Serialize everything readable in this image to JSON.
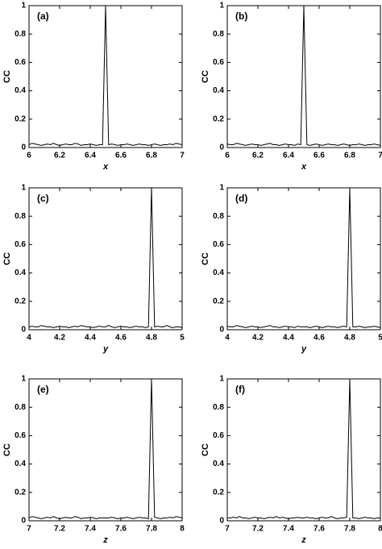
{
  "chart_data": [
    {
      "type": "line",
      "annotation": "(a)",
      "xlabel": "x",
      "ylabel": "CC",
      "color": "#000000",
      "x": [
        6,
        6.02,
        6.04,
        6.06,
        6.08,
        6.1,
        6.12,
        6.14,
        6.16,
        6.18,
        6.2,
        6.22,
        6.24,
        6.26,
        6.28,
        6.3,
        6.32,
        6.34,
        6.36,
        6.38,
        6.4,
        6.42,
        6.44,
        6.46,
        6.48,
        6.5,
        6.52,
        6.54,
        6.56,
        6.58,
        6.6,
        6.62,
        6.64,
        6.66,
        6.68,
        6.7,
        6.72,
        6.74,
        6.76,
        6.78,
        6.8,
        6.82,
        6.84,
        6.86,
        6.88,
        6.9,
        6.92,
        6.94,
        6.96,
        6.98,
        7
      ],
      "values": [
        0.02,
        0.03,
        0.025,
        0.02,
        0.015,
        0.02,
        0.025,
        0.02,
        0.03,
        0.02,
        0.015,
        0.02,
        0.025,
        0.02,
        0.02,
        0.03,
        0.025,
        0.015,
        0.02,
        0.02,
        0.025,
        0.02,
        0.015,
        0.02,
        0.02,
        1,
        0.02,
        0.025,
        0.02,
        0.015,
        0.02,
        0.02,
        0.025,
        0.02,
        0.015,
        0.02,
        0.025,
        0.02,
        0.02,
        0.015,
        0.02,
        0.025,
        0.02,
        0.015,
        0.02,
        0.02,
        0.025,
        0.02,
        0.03,
        0.025,
        0.02
      ],
      "xlim": [
        6,
        7
      ],
      "ylim": [
        0,
        1
      ],
      "xticks": [
        6,
        6.2,
        6.4,
        6.6,
        6.8,
        7
      ],
      "yticks": [
        0,
        0.2,
        0.4,
        0.6,
        0.8,
        1
      ]
    },
    {
      "type": "line",
      "annotation": "(b)",
      "xlabel": "x",
      "ylabel": "CC",
      "color": "#000000",
      "x": [
        6,
        6.02,
        6.04,
        6.06,
        6.08,
        6.1,
        6.12,
        6.14,
        6.16,
        6.18,
        6.2,
        6.22,
        6.24,
        6.26,
        6.28,
        6.3,
        6.32,
        6.34,
        6.36,
        6.38,
        6.4,
        6.42,
        6.44,
        6.46,
        6.48,
        6.5,
        6.52,
        6.54,
        6.56,
        6.58,
        6.6,
        6.62,
        6.64,
        6.66,
        6.68,
        6.7,
        6.72,
        6.74,
        6.76,
        6.78,
        6.8,
        6.82,
        6.84,
        6.86,
        6.88,
        6.9,
        6.92,
        6.94,
        6.96,
        6.98,
        7
      ],
      "values": [
        0.025,
        0.02,
        0.02,
        0.03,
        0.025,
        0.02,
        0.015,
        0.02,
        0.025,
        0.02,
        0.02,
        0.015,
        0.02,
        0.025,
        0.03,
        0.02,
        0.02,
        0.015,
        0.02,
        0.025,
        0.02,
        0.02,
        0.015,
        0.025,
        0.02,
        1,
        0.02,
        0.015,
        0.02,
        0.025,
        0.02,
        0.015,
        0.02,
        0.025,
        0.02,
        0.02,
        0.015,
        0.02,
        0.025,
        0.02,
        0.015,
        0.02,
        0.02,
        0.025,
        0.02,
        0.015,
        0.02,
        0.02,
        0.025,
        0.02,
        0.015
      ],
      "xlim": [
        6,
        7
      ],
      "ylim": [
        0,
        1
      ],
      "xticks": [
        6,
        6.2,
        6.4,
        6.6,
        6.8,
        7
      ],
      "yticks": [
        0,
        0.2,
        0.4,
        0.6,
        0.8,
        1
      ]
    },
    {
      "type": "line",
      "annotation": "(c)",
      "xlabel": "y",
      "ylabel": "CC",
      "color": "#000000",
      "x": [
        4,
        4.02,
        4.04,
        4.06,
        4.08,
        4.1,
        4.12,
        4.14,
        4.16,
        4.18,
        4.2,
        4.22,
        4.24,
        4.26,
        4.28,
        4.3,
        4.32,
        4.34,
        4.36,
        4.38,
        4.4,
        4.42,
        4.44,
        4.46,
        4.48,
        4.5,
        4.52,
        4.54,
        4.56,
        4.58,
        4.6,
        4.62,
        4.64,
        4.66,
        4.68,
        4.7,
        4.72,
        4.74,
        4.76,
        4.78,
        4.8,
        4.82,
        4.84,
        4.86,
        4.88,
        4.9,
        4.92,
        4.94,
        4.96,
        4.98,
        5
      ],
      "values": [
        0.02,
        0.025,
        0.02,
        0.02,
        0.03,
        0.025,
        0.02,
        0.02,
        0.015,
        0.02,
        0.025,
        0.02,
        0.02,
        0.015,
        0.02,
        0.025,
        0.02,
        0.03,
        0.025,
        0.02,
        0.02,
        0.015,
        0.02,
        0.025,
        0.02,
        0.02,
        0.03,
        0.02,
        0.015,
        0.02,
        0.025,
        0.02,
        0.02,
        0.015,
        0.02,
        0.025,
        0.02,
        0.02,
        0.015,
        0.02,
        1,
        0.02,
        0.025,
        0.02,
        0.02,
        0.03,
        0.02,
        0.015,
        0.02,
        0.02,
        0.015
      ],
      "xlim": [
        4,
        5
      ],
      "ylim": [
        0,
        1
      ],
      "xticks": [
        4,
        4.2,
        4.4,
        4.6,
        4.8,
        5
      ],
      "yticks": [
        0,
        0.2,
        0.4,
        0.6,
        0.8,
        1
      ]
    },
    {
      "type": "line",
      "annotation": "(d)",
      "xlabel": "y",
      "ylabel": "CC",
      "color": "#000000",
      "x": [
        4,
        4.02,
        4.04,
        4.06,
        4.08,
        4.1,
        4.12,
        4.14,
        4.16,
        4.18,
        4.2,
        4.22,
        4.24,
        4.26,
        4.28,
        4.3,
        4.32,
        4.34,
        4.36,
        4.38,
        4.4,
        4.42,
        4.44,
        4.46,
        4.48,
        4.5,
        4.52,
        4.54,
        4.56,
        4.58,
        4.6,
        4.62,
        4.64,
        4.66,
        4.68,
        4.7,
        4.72,
        4.74,
        4.76,
        4.78,
        4.8,
        4.82,
        4.84,
        4.86,
        4.88,
        4.9,
        4.92,
        4.94,
        4.96,
        4.98,
        5
      ],
      "values": [
        0.025,
        0.02,
        0.02,
        0.03,
        0.025,
        0.02,
        0.015,
        0.02,
        0.025,
        0.02,
        0.02,
        0.015,
        0.02,
        0.025,
        0.03,
        0.02,
        0.02,
        0.015,
        0.02,
        0.025,
        0.02,
        0.02,
        0.015,
        0.025,
        0.02,
        0.02,
        0.02,
        0.015,
        0.02,
        0.025,
        0.02,
        0.015,
        0.02,
        0.025,
        0.02,
        0.02,
        0.015,
        0.02,
        0.025,
        0.02,
        1,
        0.02,
        0.02,
        0.025,
        0.02,
        0.015,
        0.02,
        0.02,
        0.025,
        0.02,
        0.015
      ],
      "xlim": [
        4,
        5
      ],
      "ylim": [
        0,
        1
      ],
      "xticks": [
        4,
        4.2,
        4.4,
        4.6,
        4.8,
        5
      ],
      "yticks": [
        0,
        0.2,
        0.4,
        0.6,
        0.8,
        1
      ]
    },
    {
      "type": "line",
      "annotation": "(e)",
      "xlabel": "z",
      "ylabel": "CC",
      "color": "#000000",
      "x": [
        7,
        7.02,
        7.04,
        7.06,
        7.08,
        7.1,
        7.12,
        7.14,
        7.16,
        7.18,
        7.2,
        7.22,
        7.24,
        7.26,
        7.28,
        7.3,
        7.32,
        7.34,
        7.36,
        7.38,
        7.4,
        7.42,
        7.44,
        7.46,
        7.48,
        7.5,
        7.52,
        7.54,
        7.56,
        7.58,
        7.6,
        7.62,
        7.64,
        7.66,
        7.68,
        7.7,
        7.72,
        7.74,
        7.76,
        7.78,
        7.8,
        7.82,
        7.84,
        7.86,
        7.88,
        7.9,
        7.92,
        7.94,
        7.96,
        7.98,
        8
      ],
      "values": [
        0.02,
        0.03,
        0.025,
        0.02,
        0.015,
        0.02,
        0.025,
        0.02,
        0.03,
        0.02,
        0.015,
        0.02,
        0.025,
        0.02,
        0.02,
        0.03,
        0.025,
        0.015,
        0.02,
        0.02,
        0.025,
        0.02,
        0.015,
        0.02,
        0.02,
        0.02,
        0.02,
        0.025,
        0.02,
        0.015,
        0.02,
        0.02,
        0.025,
        0.02,
        0.015,
        0.02,
        0.025,
        0.02,
        0.02,
        0.015,
        1,
        0.025,
        0.02,
        0.015,
        0.02,
        0.02,
        0.025,
        0.02,
        0.03,
        0.025,
        0.02
      ],
      "xlim": [
        7,
        8
      ],
      "ylim": [
        0,
        1
      ],
      "xticks": [
        7,
        7.2,
        7.4,
        7.6,
        7.8,
        8
      ],
      "yticks": [
        0,
        0.2,
        0.4,
        0.6,
        0.8,
        1
      ]
    },
    {
      "type": "line",
      "annotation": "(f)",
      "xlabel": "z",
      "ylabel": "CC",
      "color": "#000000",
      "x": [
        7,
        7.02,
        7.04,
        7.06,
        7.08,
        7.1,
        7.12,
        7.14,
        7.16,
        7.18,
        7.2,
        7.22,
        7.24,
        7.26,
        7.28,
        7.3,
        7.32,
        7.34,
        7.36,
        7.38,
        7.4,
        7.42,
        7.44,
        7.46,
        7.48,
        7.5,
        7.52,
        7.54,
        7.56,
        7.58,
        7.6,
        7.62,
        7.64,
        7.66,
        7.68,
        7.7,
        7.72,
        7.74,
        7.76,
        7.78,
        7.8,
        7.82,
        7.84,
        7.86,
        7.88,
        7.9,
        7.92,
        7.94,
        7.96,
        7.98,
        8
      ],
      "values": [
        0.02,
        0.02,
        0.025,
        0.02,
        0.03,
        0.02,
        0.02,
        0.015,
        0.02,
        0.025,
        0.02,
        0.02,
        0.015,
        0.02,
        0.025,
        0.02,
        0.03,
        0.02,
        0.025,
        0.02,
        0.015,
        0.02,
        0.02,
        0.025,
        0.02,
        0.02,
        0.025,
        0.02,
        0.02,
        0.015,
        0.02,
        0.025,
        0.02,
        0.02,
        0.03,
        0.02,
        0.015,
        0.02,
        0.02,
        0.025,
        1,
        0.02,
        0.02,
        0.015,
        0.02,
        0.025,
        0.02,
        0.02,
        0.015,
        0.02,
        0.02
      ],
      "xlim": [
        7,
        8
      ],
      "ylim": [
        0,
        1
      ],
      "xticks": [
        7,
        7.2,
        7.4,
        7.6,
        7.8,
        8
      ],
      "yticks": [
        0,
        0.2,
        0.4,
        0.6,
        0.8,
        1
      ]
    }
  ]
}
